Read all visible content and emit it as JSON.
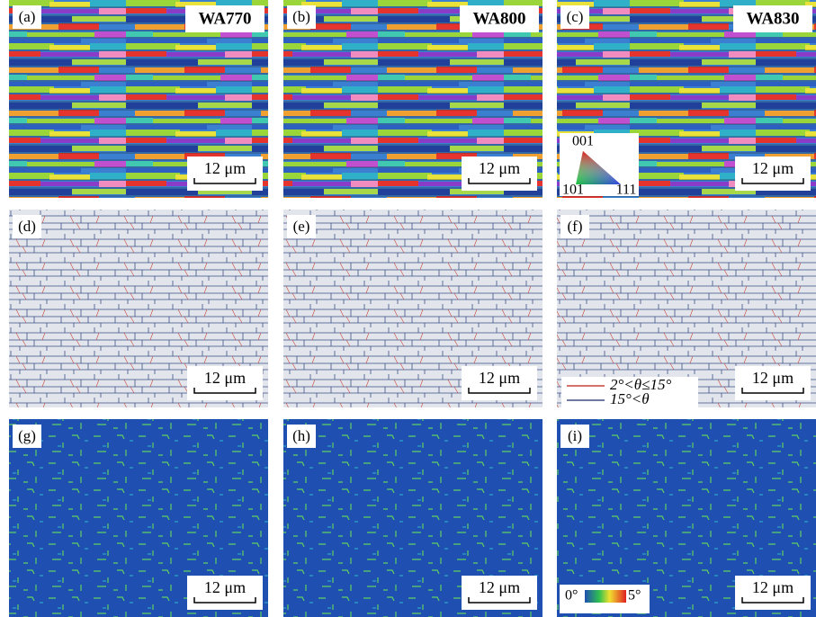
{
  "panels": [
    {
      "label": "(a)",
      "title": "WA770",
      "scale": "12 μm"
    },
    {
      "label": "(b)",
      "title": "WA800",
      "scale": "12 μm"
    },
    {
      "label": "(c)",
      "title": "WA830",
      "scale": "12 μm"
    },
    {
      "label": "(d)",
      "scale": "12 μm"
    },
    {
      "label": "(e)",
      "scale": "12 μm"
    },
    {
      "label": "(f)",
      "scale": "12 μm"
    },
    {
      "label": "(g)",
      "scale": "12 μm"
    },
    {
      "label": "(h)",
      "scale": "12 μm"
    },
    {
      "label": "(i)",
      "scale": "12 μm"
    }
  ],
  "ipf_legend": {
    "top": "001",
    "left": "101",
    "right": "111"
  },
  "boundary_legend": [
    "2°<θ≤15°",
    "15°<θ"
  ],
  "kam_legend": {
    "min": "0°",
    "max": "5°"
  }
}
